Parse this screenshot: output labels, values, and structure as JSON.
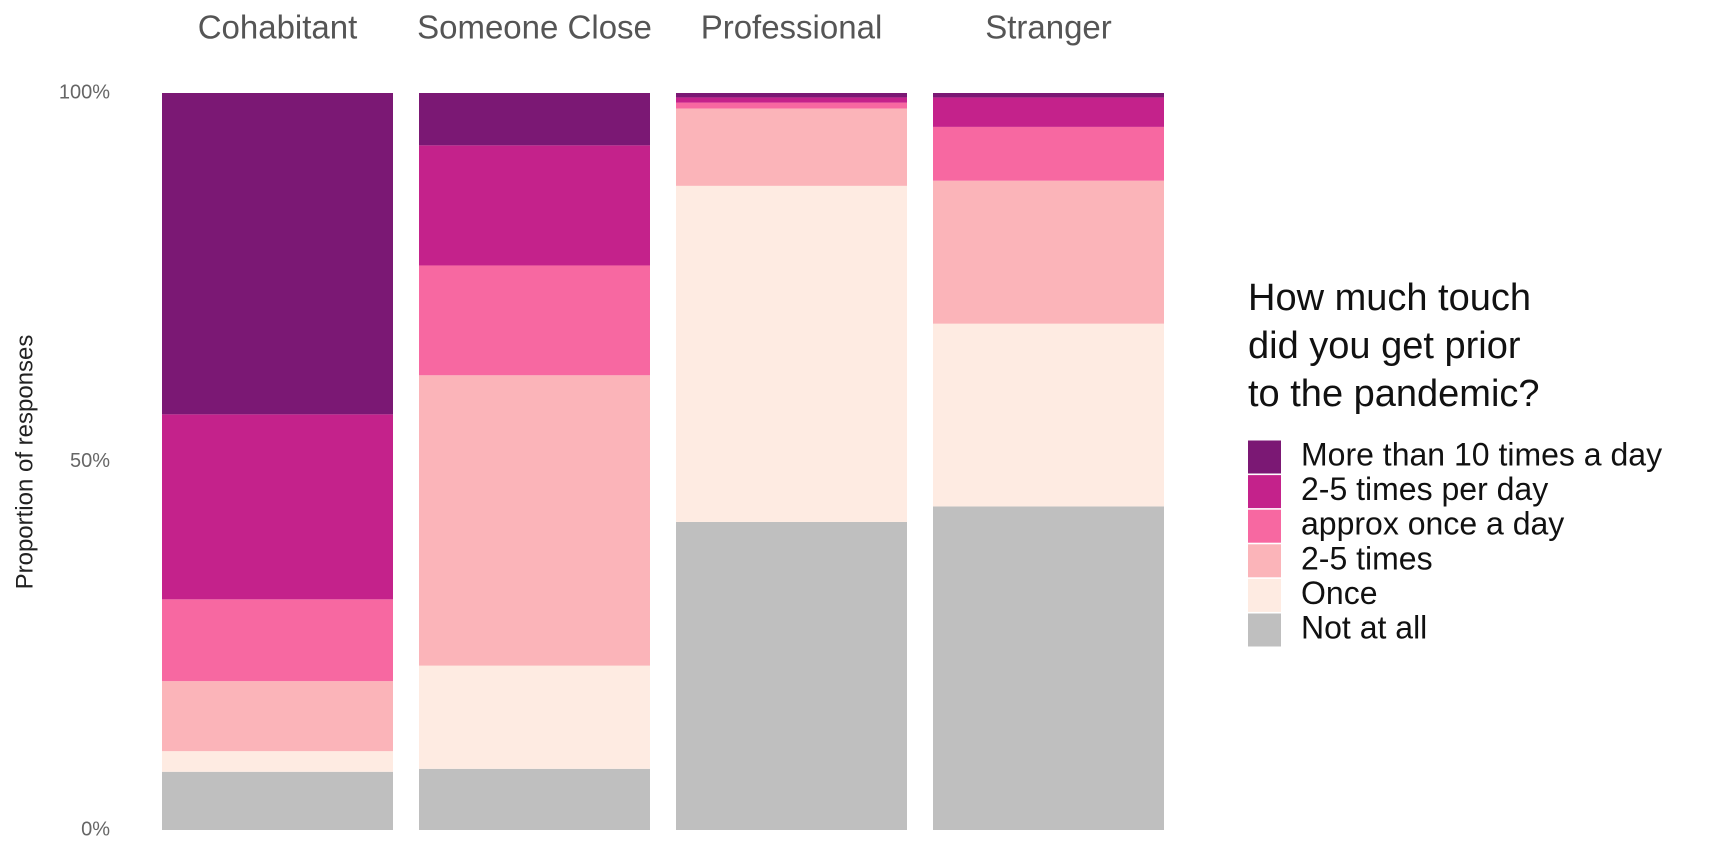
{
  "chart_data": {
    "type": "stacked_bar",
    "y_label": "Proportion of responses",
    "legend_title": [
      "How much touch",
      "did you get prior",
      "to the pandemic?"
    ],
    "legend_position": "right",
    "categories": [
      "Cohabitant",
      "Someone Close",
      "Professional",
      "Stranger"
    ],
    "ylim": [
      0,
      100
    ],
    "yticks": [
      {
        "value": 0,
        "label": "0%"
      },
      {
        "value": 50,
        "label": "50%"
      },
      {
        "value": 100,
        "label": "100%"
      }
    ],
    "series": [
      {
        "name": "More than 10 times a day",
        "color": "#7b1874",
        "values": [
          43.6,
          7.1,
          0.6,
          0.6
        ]
      },
      {
        "name": "2-5 times per day",
        "color": "#c4228b",
        "values": [
          25.1,
          16.3,
          0.7,
          4.0
        ]
      },
      {
        "name": "approx once a day",
        "color": "#f768a1",
        "values": [
          11.1,
          14.9,
          0.8,
          7.3
        ]
      },
      {
        "name": "2-5 times",
        "color": "#fbb4b9",
        "values": [
          9.5,
          39.4,
          10.5,
          19.4
        ]
      },
      {
        "name": "Once",
        "color": "#feebe2",
        "values": [
          2.8,
          14.0,
          45.6,
          24.8
        ]
      },
      {
        "name": "Not at all",
        "color": "#bfbfbf",
        "values": [
          7.9,
          8.3,
          41.8,
          43.9
        ]
      }
    ]
  }
}
